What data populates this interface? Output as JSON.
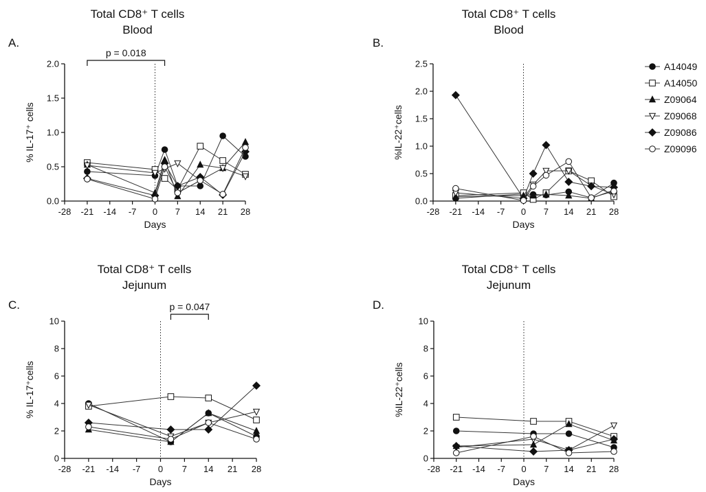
{
  "series_names": [
    "A14049",
    "A14050",
    "Z09064",
    "Z09068",
    "Z09086",
    "Z09096"
  ],
  "chart_data": [
    {
      "panel": "A.",
      "title": [
        "Total CD8⁺ T cells",
        "Blood"
      ],
      "type": "line",
      "xlabel": "Days",
      "ylabel": "% IL-17⁺ cells",
      "xlim": [
        -28,
        28
      ],
      "ylim": [
        0,
        2.0
      ],
      "xticks": [
        -28,
        -21,
        -14,
        -7,
        0,
        7,
        14,
        21,
        28
      ],
      "yticks": [
        "0.0",
        "0.5",
        "1.0",
        "1.5",
        "2.0"
      ],
      "bracket": {
        "from": -21,
        "to": 3,
        "text": "p = 0.018"
      },
      "series": [
        {
          "name": "A14049",
          "x": [
            -21,
            0,
            3,
            7,
            14,
            21,
            28
          ],
          "y": [
            0.43,
            0.37,
            0.75,
            0.22,
            0.22,
            0.95,
            0.65
          ]
        },
        {
          "name": "A14050",
          "x": [
            -21,
            0,
            3,
            7,
            14,
            21,
            28
          ],
          "y": [
            0.56,
            0.46,
            0.33,
            0.17,
            0.8,
            0.59,
            0.39
          ]
        },
        {
          "name": "Z09064",
          "x": [
            -21,
            0,
            3,
            7,
            14,
            21,
            28
          ],
          "y": [
            0.53,
            0.12,
            0.6,
            0.07,
            0.53,
            0.48,
            0.86
          ]
        },
        {
          "name": "Z09068",
          "x": [
            -21,
            0,
            3,
            7,
            14,
            21,
            28
          ],
          "y": [
            0.52,
            0.41,
            0.47,
            0.55,
            0.3,
            0.48,
            0.36
          ]
        },
        {
          "name": "Z09086",
          "x": [
            -21,
            0,
            3,
            7,
            14,
            21,
            28
          ],
          "y": [
            0.33,
            0.08,
            0.55,
            0.22,
            0.35,
            0.09,
            0.72
          ]
        },
        {
          "name": "Z09096",
          "x": [
            -21,
            0,
            3,
            7,
            14,
            21,
            28
          ],
          "y": [
            0.32,
            0.03,
            0.5,
            0.12,
            0.3,
            0.1,
            0.78
          ]
        }
      ]
    },
    {
      "panel": "B.",
      "title": [
        "Total CD8⁺ T cells",
        "Blood"
      ],
      "type": "line",
      "xlabel": "Days",
      "ylabel": "%IL-22⁺cells",
      "xlim": [
        -28,
        28
      ],
      "ylim": [
        0,
        2.5
      ],
      "xticks": [
        -28,
        -21,
        -14,
        -7,
        0,
        7,
        14,
        21,
        28
      ],
      "yticks": [
        "0.0",
        "0.5",
        "1.0",
        "1.5",
        "2.0",
        "2.5"
      ],
      "series": [
        {
          "name": "A14049",
          "x": [
            -21,
            0,
            3,
            7,
            14,
            21,
            28
          ],
          "y": [
            0.05,
            0.13,
            0.12,
            0.11,
            0.17,
            0.06,
            0.33
          ]
        },
        {
          "name": "A14050",
          "x": [
            -21,
            0,
            3,
            7,
            14,
            21,
            28
          ],
          "y": [
            0.1,
            0.15,
            0.03,
            0.15,
            0.55,
            0.37,
            0.08
          ]
        },
        {
          "name": "Z09064",
          "x": [
            -21,
            0,
            3,
            7,
            14,
            21,
            28
          ],
          "y": [
            0.08,
            0.1,
            0.1,
            0.12,
            0.1,
            0.05,
            0.2
          ]
        },
        {
          "name": "Z09068",
          "x": [
            -21,
            0,
            3,
            7,
            14,
            21,
            28
          ],
          "y": [
            0.15,
            0.05,
            0.3,
            0.55,
            0.55,
            0.28,
            0.12
          ]
        },
        {
          "name": "Z09086",
          "x": [
            -21,
            0,
            3,
            7,
            14,
            21,
            28
          ],
          "y": [
            1.93,
            0.05,
            0.5,
            1.02,
            0.35,
            0.27,
            0.25
          ]
        },
        {
          "name": "Z09096",
          "x": [
            -21,
            0,
            3,
            7,
            14,
            21,
            28
          ],
          "y": [
            0.23,
            0.01,
            0.27,
            0.47,
            0.72,
            0.06,
            0.18
          ]
        }
      ]
    },
    {
      "panel": "C.",
      "title": [
        "Total CD8⁺ T cells",
        "Jejunum"
      ],
      "type": "line",
      "xlabel": "Days",
      "ylabel": "% IL-17⁺cells",
      "xlim": [
        -28,
        28
      ],
      "ylim": [
        0,
        10
      ],
      "xticks": [
        -28,
        -21,
        -14,
        -7,
        0,
        7,
        14,
        21,
        28
      ],
      "yticks": [
        "0",
        "2",
        "4",
        "6",
        "8",
        "10"
      ],
      "bracket": {
        "from": 3,
        "to": 14,
        "text": "p = 0.047"
      },
      "series": [
        {
          "name": "A14049",
          "x": [
            -21,
            3,
            14,
            28
          ],
          "y": [
            4.0,
            1.2,
            3.3,
            1.6
          ]
        },
        {
          "name": "A14050",
          "x": [
            -21,
            3,
            14,
            28
          ],
          "y": [
            3.8,
            4.5,
            4.4,
            2.8
          ]
        },
        {
          "name": "Z09064",
          "x": [
            -21,
            3,
            14,
            28
          ],
          "y": [
            2.1,
            1.2,
            3.3,
            2.0
          ]
        },
        {
          "name": "Z09068",
          "x": [
            -21,
            3,
            14,
            28
          ],
          "y": [
            3.9,
            1.6,
            2.6,
            3.4
          ]
        },
        {
          "name": "Z09086",
          "x": [
            -21,
            3,
            14,
            28
          ],
          "y": [
            2.6,
            2.1,
            2.1,
            5.3
          ]
        },
        {
          "name": "Z09096",
          "x": [
            -21,
            3,
            14,
            28
          ],
          "y": [
            2.3,
            1.4,
            2.6,
            1.4
          ]
        }
      ]
    },
    {
      "panel": "D.",
      "title": [
        "Total CD8⁺ T cells",
        "Jejunum"
      ],
      "type": "line",
      "xlabel": "Days",
      "ylabel": "%IL-22⁺cells",
      "xlim": [
        -28,
        28
      ],
      "ylim": [
        0,
        10
      ],
      "xticks": [
        -28,
        -21,
        -14,
        -7,
        0,
        7,
        14,
        21,
        28
      ],
      "yticks": [
        "0",
        "2",
        "4",
        "6",
        "8",
        "10"
      ],
      "series": [
        {
          "name": "A14049",
          "x": [
            -21,
            3,
            14,
            28
          ],
          "y": [
            2.0,
            1.8,
            1.8,
            0.8
          ]
        },
        {
          "name": "A14050",
          "x": [
            -21,
            3,
            14,
            28
          ],
          "y": [
            3.0,
            2.7,
            2.7,
            1.6
          ]
        },
        {
          "name": "Z09064",
          "x": [
            -21,
            3,
            14,
            28
          ],
          "y": [
            0.9,
            1.0,
            2.5,
            1.3
          ]
        },
        {
          "name": "Z09068",
          "x": [
            -21,
            3,
            14,
            28
          ],
          "y": [
            0.8,
            1.4,
            0.6,
            2.4
          ]
        },
        {
          "name": "Z09086",
          "x": [
            -21,
            3,
            14,
            28
          ],
          "y": [
            0.9,
            0.5,
            0.6,
            1.4
          ]
        },
        {
          "name": "Z09096",
          "x": [
            -21,
            3,
            14,
            28
          ],
          "y": [
            0.4,
            1.6,
            0.4,
            0.5
          ]
        }
      ]
    }
  ],
  "marker_styles": [
    "filled-circle",
    "open-square",
    "filled-triangle",
    "open-triangle-down",
    "filled-diamond",
    "open-circle"
  ],
  "colors": {
    "line": "#333333",
    "marker_fill": "#111111",
    "marker_open": "#ffffff",
    "axis": "#111111"
  }
}
